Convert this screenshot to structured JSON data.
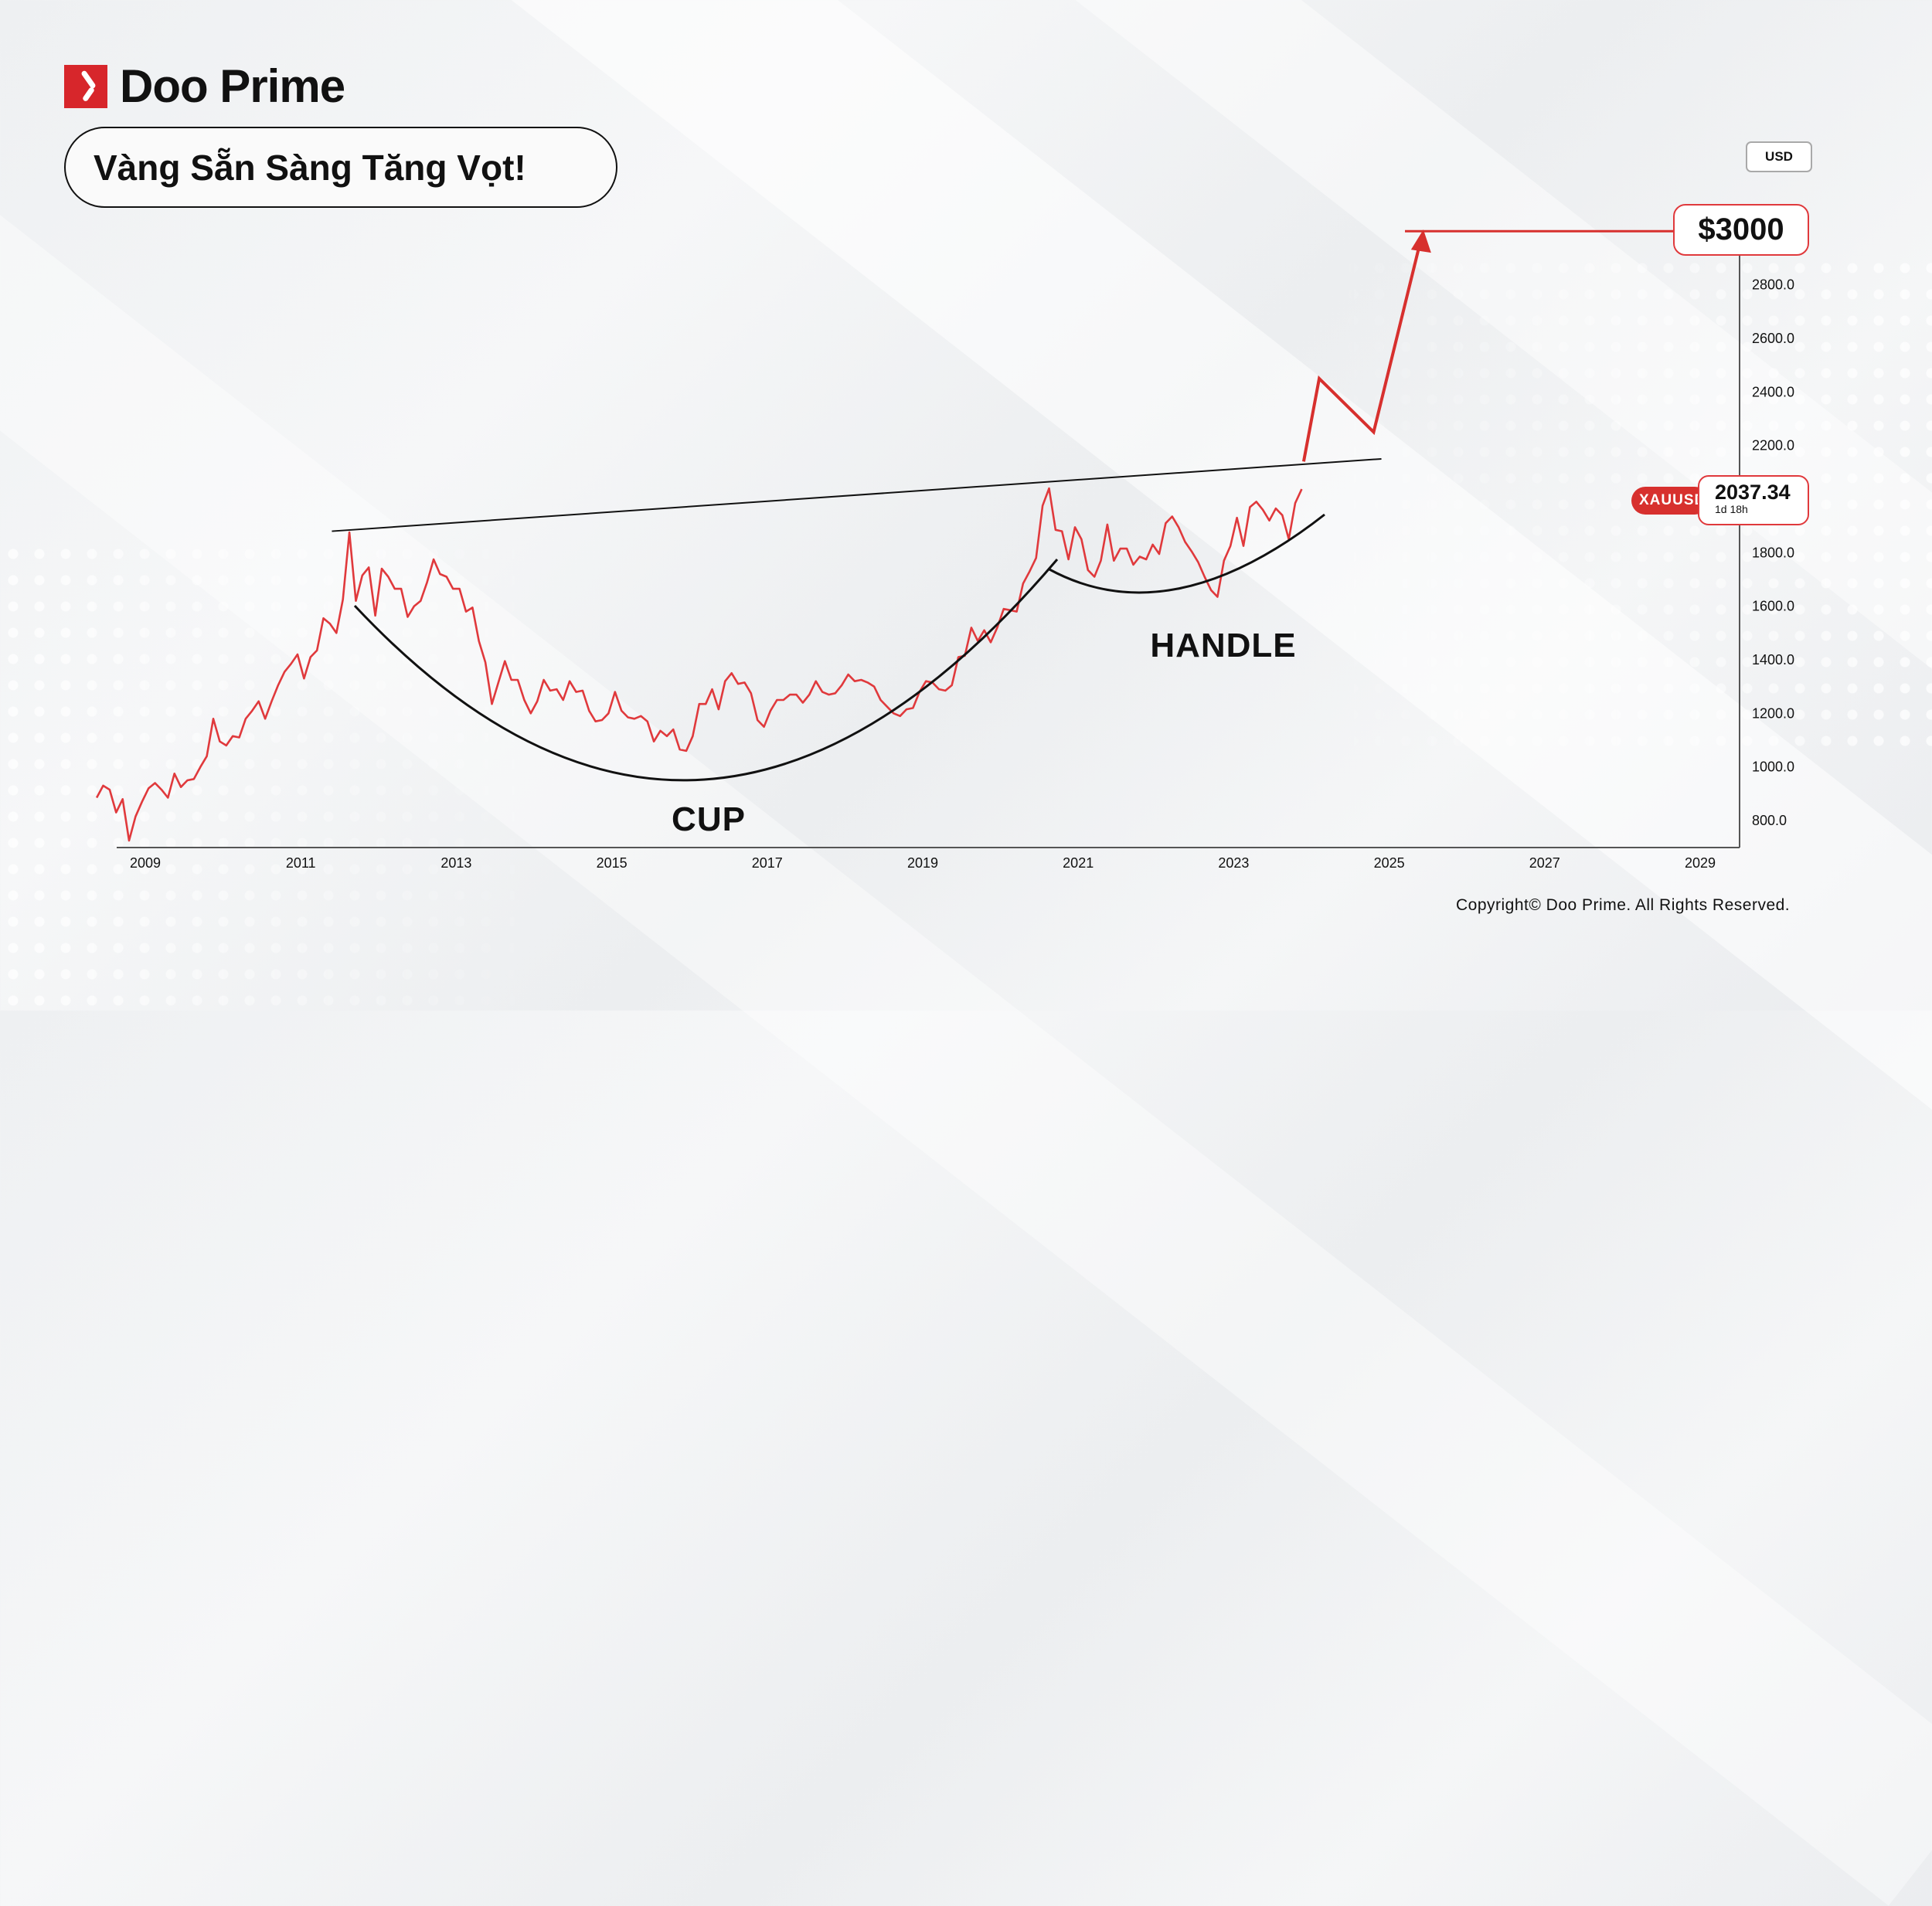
{
  "brand": {
    "name": "Doo Prime",
    "accent": "#d7262b"
  },
  "title": "Vàng Sẵn Sàng Tăng Vọt!",
  "currency_button": "USD",
  "target_label": "$3000",
  "ticker": {
    "symbol": "XAUUSD",
    "price": "2037.34",
    "countdown": "1d 18h"
  },
  "copyright": "Copyright© Doo Prime. All Rights Reserved.",
  "chart_data": {
    "type": "line",
    "title": "",
    "xlabel": "",
    "ylabel": "",
    "x_ticks": [
      "2009",
      "2011",
      "2013",
      "2015",
      "2017",
      "2019",
      "2021",
      "2023",
      "2025",
      "2027",
      "2029"
    ],
    "y_ticks": [
      "800.0",
      "1000.0",
      "1200.0",
      "1400.0",
      "1600.0",
      "1800.0",
      "2200.0",
      "2400.0",
      "2600.0",
      "2800.0"
    ],
    "ylim": [
      700,
      3000
    ],
    "xlim": [
      2008,
      2030
    ],
    "grid": false,
    "line_color": "#e0393c",
    "series": [
      {
        "monthly_values_by_year": {
          "2008": [
            885,
            930,
            915,
            830,
            880,
            725,
            815,
            870
          ],
          "2009": [
            920,
            940,
            915,
            885,
            975,
            925,
            950,
            955,
            1000,
            1040,
            1180,
            1095
          ],
          "2010": [
            1080,
            1115,
            1110,
            1180,
            1210,
            1245,
            1180,
            1245,
            1305,
            1355,
            1385,
            1420
          ],
          "2011": [
            1330,
            1410,
            1435,
            1555,
            1535,
            1500,
            1625,
            1876,
            1620,
            1715,
            1745,
            1565
          ],
          "2012": [
            1740,
            1710,
            1665,
            1665,
            1560,
            1600,
            1620,
            1690,
            1775,
            1720,
            1710,
            1665
          ],
          "2013": [
            1665,
            1580,
            1595,
            1470,
            1390,
            1235,
            1315,
            1395,
            1325,
            1325,
            1250,
            1200
          ],
          "2014": [
            1245,
            1325,
            1285,
            1290,
            1250,
            1320,
            1280,
            1285,
            1210,
            1170,
            1175,
            1200
          ],
          "2015": [
            1280,
            1210,
            1185,
            1180,
            1190,
            1170,
            1095,
            1135,
            1115,
            1140,
            1065,
            1060
          ],
          "2016": [
            1115,
            1235,
            1235,
            1290,
            1215,
            1320,
            1350,
            1310,
            1315,
            1275,
            1175,
            1150
          ],
          "2017": [
            1210,
            1250,
            1250,
            1270,
            1270,
            1240,
            1270,
            1320,
            1280,
            1270,
            1275,
            1305
          ],
          "2018": [
            1345,
            1320,
            1325,
            1315,
            1300,
            1250,
            1225,
            1200,
            1190,
            1215,
            1220,
            1280
          ],
          "2019": [
            1320,
            1315,
            1290,
            1285,
            1305,
            1410,
            1415,
            1520,
            1470,
            1510,
            1465,
            1520
          ],
          "2020": [
            1590,
            1585,
            1580,
            1685,
            1730,
            1780,
            1975,
            2040,
            1885,
            1880,
            1775,
            1895
          ],
          "2021": [
            1850,
            1735,
            1710,
            1770,
            1905,
            1770,
            1815,
            1815,
            1755,
            1785,
            1775,
            1830
          ],
          "2022": [
            1795,
            1910,
            1935,
            1895,
            1840,
            1805,
            1765,
            1710,
            1660,
            1635,
            1770,
            1825
          ],
          "2023": [
            1930,
            1825,
            1970,
            1990,
            1960,
            1920,
            1965,
            1940,
            1850,
            1985,
            2037
          ]
        }
      }
    ],
    "annotations": {
      "cup_label": "CUP",
      "handle_label": "HANDLE",
      "target_value": 3000,
      "resistance_line": {
        "from": [
          2011.4,
          1880
        ],
        "to": [
          2024.9,
          2150
        ]
      },
      "projection": [
        [
          2023.9,
          2140
        ],
        [
          2024.1,
          2450
        ],
        [
          2024.8,
          2250
        ],
        [
          2025.4,
          2960
        ]
      ]
    }
  }
}
